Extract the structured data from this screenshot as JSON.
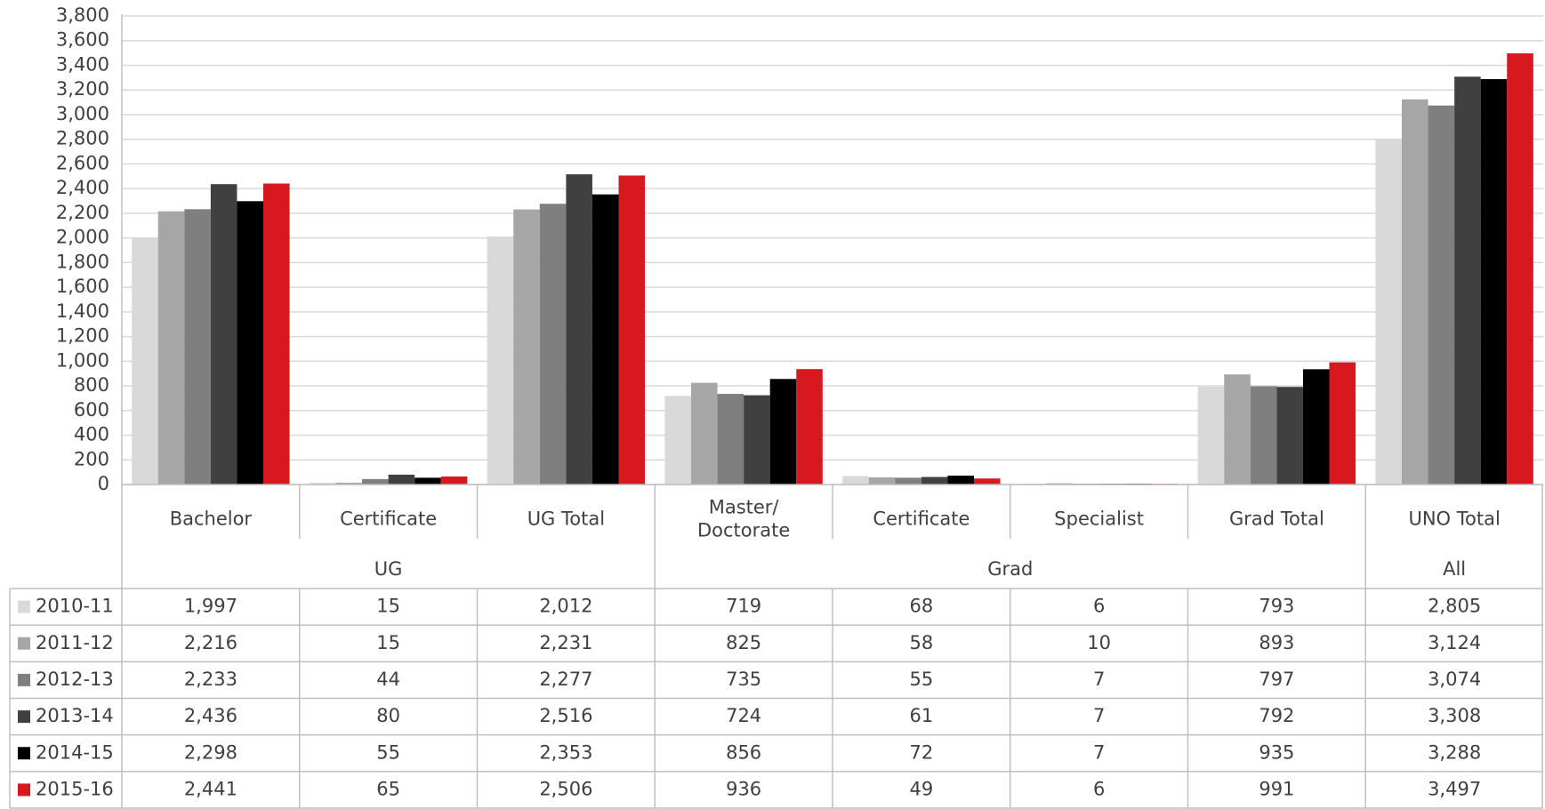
{
  "chart_data": {
    "type": "bar",
    "categories": [
      "Bachelor",
      "Certificate",
      "UG Total",
      "Master/\nDoctorate",
      "Certificate",
      "Specialist",
      "Grad Total",
      "UNO Total"
    ],
    "groups": [
      {
        "label": "UG",
        "size": 3
      },
      {
        "label": "Grad",
        "size": 4
      },
      {
        "label": "All",
        "size": 1
      }
    ],
    "series": [
      {
        "name": "2010-11",
        "color": "#d9d9d9",
        "values": [
          1997,
          15,
          2012,
          719,
          68,
          6,
          793,
          2805
        ],
        "value_labels": [
          "1,997",
          "15",
          "2,012",
          "719",
          "68",
          "6",
          "793",
          "2,805"
        ]
      },
      {
        "name": "2011-12",
        "color": "#a6a6a6",
        "values": [
          2216,
          15,
          2231,
          825,
          58,
          10,
          893,
          3124
        ],
        "value_labels": [
          "2,216",
          "15",
          "2,231",
          "825",
          "58",
          "10",
          "893",
          "3,124"
        ]
      },
      {
        "name": "2012-13",
        "color": "#7f7f7f",
        "values": [
          2233,
          44,
          2277,
          735,
          55,
          7,
          797,
          3074
        ],
        "value_labels": [
          "2,233",
          "44",
          "2,277",
          "735",
          "55",
          "7",
          "797",
          "3,074"
        ]
      },
      {
        "name": "2013-14",
        "color": "#404040",
        "values": [
          2436,
          80,
          2516,
          724,
          61,
          7,
          792,
          3308
        ],
        "value_labels": [
          "2,436",
          "80",
          "2,516",
          "724",
          "61",
          "7",
          "792",
          "3,308"
        ]
      },
      {
        "name": "2014-15",
        "color": "#000000",
        "values": [
          2298,
          55,
          2353,
          856,
          72,
          7,
          935,
          3288
        ],
        "value_labels": [
          "2,298",
          "55",
          "2,353",
          "856",
          "72",
          "7",
          "935",
          "3,288"
        ]
      },
      {
        "name": "2015-16",
        "color": "#d7191f",
        "values": [
          2441,
          65,
          2506,
          936,
          49,
          6,
          991,
          3497
        ],
        "value_labels": [
          "2,441",
          "65",
          "2,506",
          "936",
          "49",
          "6",
          "991",
          "3,497"
        ]
      }
    ],
    "ylim": [
      0,
      3800
    ],
    "yticks": [
      0,
      200,
      400,
      600,
      800,
      {
        "value": 1000,
        "label": "1,000"
      },
      {
        "value": 1200,
        "label": "1,200"
      },
      {
        "value": 1400,
        "label": "1,400"
      },
      {
        "value": 1600,
        "label": "1,600"
      },
      {
        "value": 1800,
        "label": "1,800"
      },
      {
        "value": 2000,
        "label": "2,000"
      },
      {
        "value": 2200,
        "label": "2,200"
      },
      {
        "value": 2400,
        "label": "2,400"
      },
      {
        "value": 2600,
        "label": "2,600"
      },
      {
        "value": 2800,
        "label": "2,800"
      },
      {
        "value": 3000,
        "label": "3,000"
      },
      {
        "value": 3200,
        "label": "3,200"
      },
      {
        "value": 3400,
        "label": "3,400"
      },
      {
        "value": 3600,
        "label": "3,600"
      },
      {
        "value": 3800,
        "label": "3,800"
      }
    ],
    "grid": true
  }
}
